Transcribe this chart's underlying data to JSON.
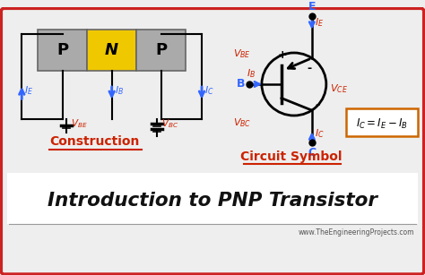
{
  "bg_color": "#eeeeee",
  "border_color": "#cc2222",
  "title_text": "Introduction to PNP Transistor",
  "subtitle": "www.TheEngineeringProjects.com",
  "construction_label": "Construction",
  "circuit_label": "Circuit Symbol",
  "p_color": "#aaaaaa",
  "n_color": "#f0c800",
  "blue_color": "#3366ff",
  "red_color": "#cc2200",
  "orange_color": "#cc6600",
  "dark_color": "#111111"
}
